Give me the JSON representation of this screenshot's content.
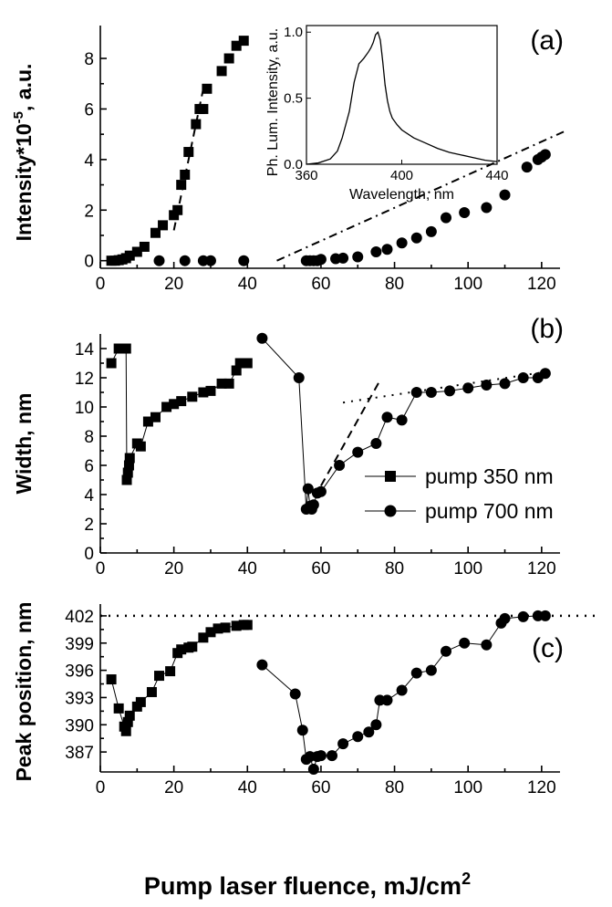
{
  "chart_data": [
    {
      "panel": "a",
      "type": "scatter",
      "panel_label": "(a)",
      "ylabel": "Intensity*10",
      "ylabel_exp": "-5",
      "ylabel_suffix": ", a.u.",
      "xlabel": "",
      "xlim": [
        0,
        125
      ],
      "ylim": [
        -0.3,
        9.3
      ],
      "xticks": [
        0,
        20,
        40,
        60,
        80,
        100,
        120
      ],
      "yticks": [
        0,
        2,
        4,
        6,
        8
      ],
      "series": [
        {
          "name": "pump 350 nm",
          "marker": "square",
          "x": [
            3,
            4,
            5,
            6,
            7,
            8,
            10,
            12,
            15,
            17,
            20,
            21,
            22,
            23,
            24,
            26,
            27,
            28,
            29,
            33,
            35,
            37,
            39
          ],
          "y": [
            0,
            0,
            0.02,
            0.05,
            0.1,
            0.2,
            0.35,
            0.55,
            1.1,
            1.4,
            1.8,
            2.0,
            3.0,
            3.4,
            4.3,
            5.4,
            6.0,
            6.0,
            6.8,
            7.5,
            8.0,
            8.5,
            8.7
          ],
          "connected": false
        },
        {
          "name": "pump 700 nm",
          "marker": "circle",
          "x": [
            16,
            23,
            28,
            30,
            39,
            56,
            57,
            58,
            59,
            60,
            64,
            66,
            70,
            75,
            78,
            82,
            86,
            90,
            94,
            99,
            105,
            110,
            116,
            119,
            120,
            121
          ],
          "y": [
            0,
            0,
            0,
            0,
            0,
            0,
            0,
            0,
            0,
            0.05,
            0.08,
            0.1,
            0.15,
            0.35,
            0.45,
            0.7,
            0.9,
            1.15,
            1.7,
            1.9,
            2.1,
            2.6,
            3.7,
            4.0,
            4.1,
            4.2
          ],
          "connected": false
        }
      ],
      "fit_lines": [
        {
          "style": "dashed",
          "x": [
            20,
            28
          ],
          "y": [
            1.2,
            6.8
          ]
        },
        {
          "style": "dashdot",
          "x": [
            48,
            126
          ],
          "y": [
            0,
            5.1
          ]
        }
      ],
      "inset": {
        "type": "line",
        "xlabel": "Wavelength, nm",
        "ylabel": "Ph. Lum. Intensity, a.u.",
        "xlim": [
          360,
          440
        ],
        "ylim": [
          0,
          1.05
        ],
        "xticks": [
          360,
          400,
          440
        ],
        "yticks": [
          0.0,
          0.5,
          1.0
        ],
        "ytick_labels": [
          "0.0",
          "0.5",
          "1.0"
        ],
        "x": [
          360,
          365,
          370,
          373,
          375,
          378,
          380,
          382,
          384,
          386,
          387,
          388,
          389,
          390,
          391,
          392,
          393,
          394,
          395,
          396,
          398,
          400,
          405,
          410,
          415,
          420,
          425,
          430,
          435,
          440
        ],
        "y": [
          0.0,
          0.01,
          0.04,
          0.1,
          0.2,
          0.4,
          0.62,
          0.76,
          0.8,
          0.85,
          0.88,
          0.92,
          0.98,
          1.0,
          0.94,
          0.78,
          0.6,
          0.48,
          0.4,
          0.35,
          0.3,
          0.26,
          0.2,
          0.16,
          0.12,
          0.09,
          0.07,
          0.05,
          0.03,
          0.02
        ]
      }
    },
    {
      "panel": "b",
      "type": "line",
      "panel_label": "(b)",
      "ylabel": "Width, nm",
      "xlabel": "",
      "xlim": [
        0,
        125
      ],
      "ylim": [
        0,
        15
      ],
      "xticks": [
        0,
        20,
        40,
        60,
        80,
        100,
        120
      ],
      "yticks": [
        0,
        2,
        4,
        6,
        8,
        10,
        12,
        14
      ],
      "series": [
        {
          "name": "pump 350 nm",
          "marker": "square",
          "x": [
            3,
            5,
            7,
            7.2,
            7.5,
            7.8,
            8,
            10,
            11,
            13,
            15,
            18,
            20,
            22,
            25,
            28,
            30,
            33,
            35,
            37,
            38,
            40
          ],
          "y": [
            13.0,
            14.0,
            14.0,
            5.0,
            5.5,
            6.0,
            6.5,
            7.5,
            7.3,
            9.0,
            9.3,
            10.0,
            10.2,
            10.4,
            10.7,
            11.0,
            11.1,
            11.6,
            11.6,
            12.5,
            13.0,
            13.0
          ],
          "connected": true
        },
        {
          "name": "pump 700 nm",
          "marker": "circle",
          "x": [
            44,
            54,
            56,
            56.5,
            57,
            57.5,
            58,
            59,
            60,
            65,
            70,
            75,
            78,
            82,
            86,
            90,
            95,
            100,
            105,
            110,
            115,
            119,
            121
          ],
          "y": [
            14.7,
            12.0,
            3.0,
            4.4,
            3.2,
            3.0,
            3.3,
            4.1,
            4.2,
            6.0,
            6.9,
            7.5,
            9.3,
            9.1,
            11.0,
            11.0,
            11.1,
            11.3,
            11.5,
            11.6,
            12.0,
            12.0,
            12.3
          ],
          "connected": true
        }
      ],
      "fit_lines": [
        {
          "style": "dashed",
          "x": [
            60,
            76
          ],
          "y": [
            4.6,
            11.8
          ]
        },
        {
          "style": "dotted",
          "x": [
            66,
            121
          ],
          "y": [
            10.3,
            12.4
          ]
        }
      ],
      "legend": {
        "placement": "right",
        "entries": [
          "pump 350 nm",
          "pump 700 nm"
        ]
      }
    },
    {
      "panel": "c",
      "type": "line",
      "panel_label": "(c)",
      "ylabel": "Peak position, nm",
      "xlabel": "Pump laser fluence, mJ/cm",
      "xlabel_sup": "2",
      "xlim": [
        0,
        125
      ],
      "ylim": [
        384.8,
        403.3
      ],
      "xticks": [
        0,
        20,
        40,
        60,
        80,
        100,
        120
      ],
      "yticks": [
        387,
        390,
        393,
        396,
        399,
        402
      ],
      "series": [
        {
          "name": "pump 350 nm",
          "marker": "square",
          "x": [
            3,
            5,
            6.5,
            7,
            7.5,
            8,
            10,
            11,
            14,
            16,
            19,
            21,
            22,
            24,
            25,
            28,
            30,
            32,
            34,
            37,
            39,
            40
          ],
          "y": [
            395.0,
            391.8,
            389.8,
            389.3,
            390.3,
            391.0,
            392.0,
            392.5,
            393.6,
            395.4,
            395.9,
            397.9,
            398.3,
            398.5,
            398.6,
            399.6,
            400.2,
            400.6,
            400.7,
            400.9,
            401.0,
            401.0
          ],
          "connected": true
        },
        {
          "name": "pump 700 nm",
          "marker": "circle",
          "x": [
            44,
            53,
            55,
            56,
            57,
            58,
            59,
            60,
            63,
            66,
            70,
            73,
            75,
            76,
            78,
            82,
            86,
            90,
            94,
            99,
            105,
            109,
            110,
            115,
            119,
            121
          ],
          "y": [
            396.6,
            393.4,
            389.4,
            386.2,
            386.5,
            385.1,
            386.5,
            386.6,
            386.6,
            387.9,
            388.7,
            389.2,
            390.0,
            392.7,
            392.7,
            393.8,
            395.7,
            396.0,
            398.1,
            399.0,
            398.8,
            401.2,
            401.7,
            401.9,
            402.0,
            402.0
          ],
          "connected": true
        }
      ],
      "ref_lines": [
        {
          "style": "dotted",
          "y": 402
        }
      ]
    }
  ]
}
